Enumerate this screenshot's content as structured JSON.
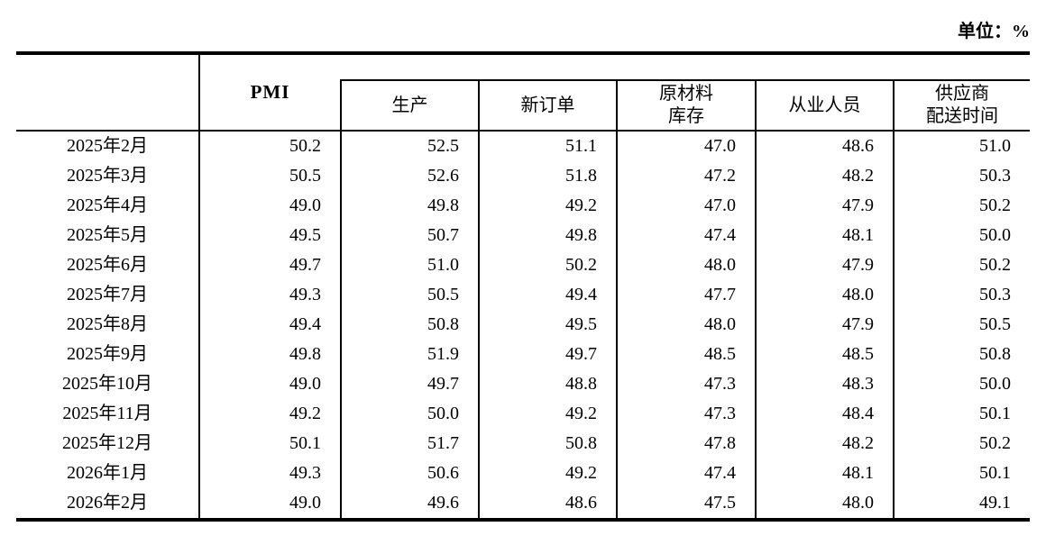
{
  "unit_label": "单位：%",
  "table": {
    "pmi_header": "PMI",
    "sub_headers": [
      {
        "key": "production",
        "lines": [
          "生产"
        ]
      },
      {
        "key": "new-orders",
        "lines": [
          "新订单"
        ]
      },
      {
        "key": "raw-materials-inventory",
        "lines": [
          "原材料",
          "库存"
        ]
      },
      {
        "key": "employment",
        "lines": [
          "从业人员"
        ]
      },
      {
        "key": "supplier-delivery-time",
        "lines": [
          "供应商",
          "配送时间"
        ]
      }
    ],
    "value_keys": [
      "pmi",
      "production",
      "new_orders",
      "raw_materials_inventory",
      "employment",
      "supplier_delivery_time"
    ],
    "rows": [
      {
        "period": "2025年2月",
        "pmi": "50.2",
        "production": "52.5",
        "new_orders": "51.1",
        "raw_materials_inventory": "47.0",
        "employment": "48.6",
        "supplier_delivery_time": "51.0"
      },
      {
        "period": "2025年3月",
        "pmi": "50.5",
        "production": "52.6",
        "new_orders": "51.8",
        "raw_materials_inventory": "47.2",
        "employment": "48.2",
        "supplier_delivery_time": "50.3"
      },
      {
        "period": "2025年4月",
        "pmi": "49.0",
        "production": "49.8",
        "new_orders": "49.2",
        "raw_materials_inventory": "47.0",
        "employment": "47.9",
        "supplier_delivery_time": "50.2"
      },
      {
        "period": "2025年5月",
        "pmi": "49.5",
        "production": "50.7",
        "new_orders": "49.8",
        "raw_materials_inventory": "47.4",
        "employment": "48.1",
        "supplier_delivery_time": "50.0"
      },
      {
        "period": "2025年6月",
        "pmi": "49.7",
        "production": "51.0",
        "new_orders": "50.2",
        "raw_materials_inventory": "48.0",
        "employment": "47.9",
        "supplier_delivery_time": "50.2"
      },
      {
        "period": "2025年7月",
        "pmi": "49.3",
        "production": "50.5",
        "new_orders": "49.4",
        "raw_materials_inventory": "47.7",
        "employment": "48.0",
        "supplier_delivery_time": "50.3"
      },
      {
        "period": "2025年8月",
        "pmi": "49.4",
        "production": "50.8",
        "new_orders": "49.5",
        "raw_materials_inventory": "48.0",
        "employment": "47.9",
        "supplier_delivery_time": "50.5"
      },
      {
        "period": "2025年9月",
        "pmi": "49.8",
        "production": "51.9",
        "new_orders": "49.7",
        "raw_materials_inventory": "48.5",
        "employment": "48.5",
        "supplier_delivery_time": "50.8"
      },
      {
        "period": "2025年10月",
        "pmi": "49.0",
        "production": "49.7",
        "new_orders": "48.8",
        "raw_materials_inventory": "47.3",
        "employment": "48.3",
        "supplier_delivery_time": "50.0"
      },
      {
        "period": "2025年11月",
        "pmi": "49.2",
        "production": "50.0",
        "new_orders": "49.2",
        "raw_materials_inventory": "47.3",
        "employment": "48.4",
        "supplier_delivery_time": "50.1"
      },
      {
        "period": "2025年12月",
        "pmi": "50.1",
        "production": "51.7",
        "new_orders": "50.8",
        "raw_materials_inventory": "47.8",
        "employment": "48.2",
        "supplier_delivery_time": "50.2"
      },
      {
        "period": "2026年1月",
        "pmi": "49.3",
        "production": "50.6",
        "new_orders": "49.2",
        "raw_materials_inventory": "47.4",
        "employment": "48.1",
        "supplier_delivery_time": "50.1"
      },
      {
        "period": "2026年2月",
        "pmi": "49.0",
        "production": "49.6",
        "new_orders": "48.6",
        "raw_materials_inventory": "47.5",
        "employment": "48.0",
        "supplier_delivery_time": "49.1"
      }
    ]
  }
}
